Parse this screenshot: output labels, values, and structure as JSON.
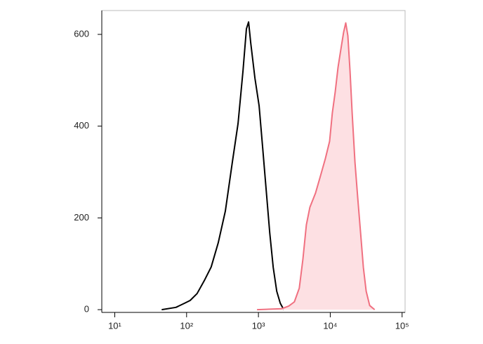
{
  "chart_data": {
    "type": "histogram-overlay",
    "xscale": "log",
    "xlim": [
      6.6,
      110000
    ],
    "ylim": [
      -6,
      652
    ],
    "xticks": [
      {
        "value": 10,
        "label": "10¹"
      },
      {
        "value": 100,
        "label": "10²"
      },
      {
        "value": 1000,
        "label": "10³"
      },
      {
        "value": 10000,
        "label": "10⁴"
      },
      {
        "value": 100000,
        "label": "10⁵"
      }
    ],
    "yticks": [
      0,
      200,
      400,
      600
    ],
    "series": [
      {
        "color": "#000000",
        "filled": false,
        "x": [
          45,
          71,
          94,
          112,
          140,
          176,
          220,
          276,
          346,
          434,
          520,
          609,
          681,
          729,
          780,
          893,
          1023,
          1146,
          1283,
          1436,
          1607,
          1799,
          2014,
          2254
        ],
        "values": [
          0,
          5,
          14,
          20,
          35,
          63,
          93,
          146,
          215,
          322,
          406,
          520,
          612,
          627,
          582,
          505,
          444,
          352,
          260,
          168,
          92,
          40,
          14,
          0
        ]
      },
      {
        "color": "#f07080",
        "fill": "#fde0e3",
        "filled": true,
        "x": [
          955,
          2109,
          2642,
          3165,
          3706,
          4150,
          4646,
          5202,
          6228,
          7295,
          8541,
          9780,
          10700,
          11720,
          12830,
          14040,
          15360,
          16440,
          17590,
          18840,
          20150,
          22050,
          24110,
          26400,
          28890,
          31620,
          35400,
          41500
        ],
        "values": [
          0,
          2,
          8,
          17,
          47,
          109,
          185,
          223,
          254,
          291,
          329,
          367,
          429,
          475,
          528,
          567,
          605,
          625,
          597,
          520,
          429,
          322,
          245,
          168,
          92,
          40,
          9,
          0
        ]
      }
    ]
  }
}
